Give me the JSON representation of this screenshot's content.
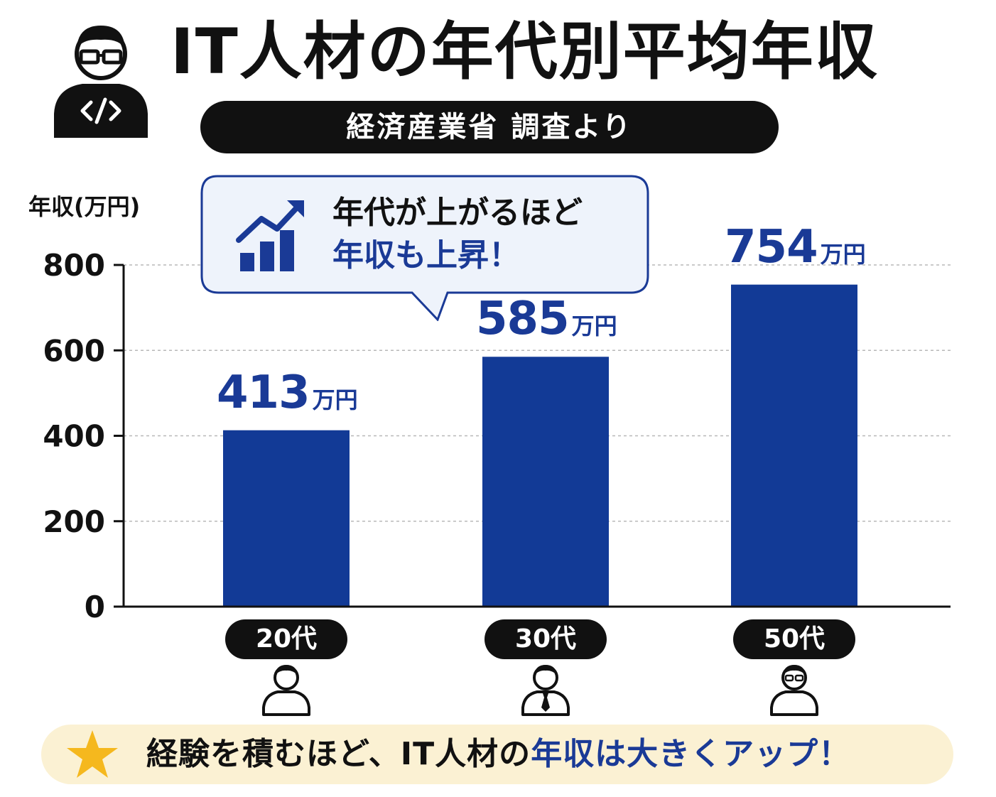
{
  "header": {
    "title": "IT人材の年代別平均年収",
    "subtitle": "経済産業省 調査より"
  },
  "callout": {
    "line1": "年代が上がるほど",
    "line2": "年収も上昇！"
  },
  "footer": {
    "text_before": "経験を積むほど、IT人材の",
    "text_highlight": "年収は大きくアップ！"
  },
  "colors": {
    "bar": "#123a96",
    "accent_text": "#1a3a96",
    "pill": "#111111",
    "footer_bg": "#fbf1d3",
    "star": "#f5b81e"
  },
  "chart_data": {
    "type": "bar",
    "title": "IT人材の年代別平均年収",
    "ylabel": "年収(万円)",
    "xlabel": "",
    "categories": [
      "20代",
      "30代",
      "50代"
    ],
    "values": [
      413,
      585,
      754
    ],
    "value_labels": [
      "413",
      "585",
      "754"
    ],
    "value_unit": "万円",
    "ylim": [
      0,
      800
    ],
    "yticks": [
      0,
      200,
      400,
      600,
      800
    ],
    "ytick_labels": [
      "0",
      "200",
      "400",
      "600",
      "800"
    ],
    "grid": true,
    "legend": "none"
  }
}
